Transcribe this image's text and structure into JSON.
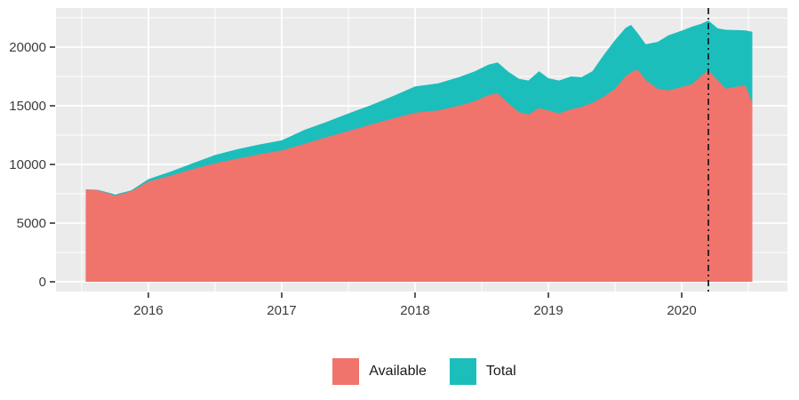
{
  "chart_data": {
    "type": "area",
    "title": "",
    "xlabel": "",
    "ylabel": "",
    "x": [
      2015.53,
      2015.62,
      2015.75,
      2015.87,
      2016.0,
      2016.17,
      2016.33,
      2016.5,
      2016.67,
      2016.83,
      2017.0,
      2017.17,
      2017.33,
      2017.5,
      2017.67,
      2017.83,
      2018.0,
      2018.17,
      2018.33,
      2018.45,
      2018.55,
      2018.62,
      2018.7,
      2018.78,
      2018.85,
      2018.93,
      2019.0,
      2019.08,
      2019.17,
      2019.25,
      2019.33,
      2019.42,
      2019.5,
      2019.58,
      2019.62,
      2019.67,
      2019.73,
      2019.82,
      2019.9,
      2020.0,
      2020.08,
      2020.15,
      2020.2,
      2020.27,
      2020.33,
      2020.42,
      2020.48,
      2020.53
    ],
    "series": [
      {
        "name": "Total",
        "color": "#1CBEBC",
        "values": [
          7880,
          7840,
          7450,
          7780,
          8750,
          9400,
          10100,
          10800,
          11300,
          11700,
          12050,
          12950,
          13600,
          14350,
          15050,
          15800,
          16650,
          16900,
          17450,
          17950,
          18500,
          18700,
          17900,
          17300,
          17150,
          17950,
          17350,
          17150,
          17500,
          17450,
          17950,
          19400,
          20600,
          21650,
          21890,
          21200,
          20250,
          20450,
          21000,
          21400,
          21750,
          22000,
          22270,
          21600,
          21480,
          21450,
          21420,
          21300
        ]
      },
      {
        "name": "Available",
        "color": "#F0746B",
        "values": [
          7850,
          7800,
          7350,
          7700,
          8550,
          9050,
          9600,
          10100,
          10500,
          10850,
          11200,
          11750,
          12300,
          12850,
          13400,
          13900,
          14400,
          14600,
          15000,
          15400,
          15900,
          16060,
          15200,
          14450,
          14250,
          14800,
          14600,
          14350,
          14700,
          14900,
          15250,
          15800,
          16450,
          17500,
          17850,
          18100,
          17200,
          16450,
          16300,
          16600,
          16850,
          17600,
          18000,
          17200,
          16450,
          16650,
          16700,
          15200
        ]
      }
    ],
    "x_axis": {
      "tick_labels": [
        "2016",
        "2017",
        "2018",
        "2019",
        "2020"
      ],
      "tick_values": [
        2016,
        2017,
        2018,
        2019,
        2020
      ],
      "minor_tick_values": [
        2015.5,
        2016.5,
        2017.5,
        2018.5,
        2019.5,
        2020.5
      ],
      "range": [
        2015.307,
        2020.793
      ]
    },
    "y_axis": {
      "tick_labels": [
        "0",
        "5000",
        "10000",
        "15000",
        "20000"
      ],
      "tick_values": [
        0,
        5000,
        10000,
        15000,
        20000
      ],
      "minor_tick_values": [
        2500,
        7500,
        12500,
        17500,
        22500
      ],
      "range": [
        -833,
        23333
      ]
    },
    "vline": {
      "x": 2020.2,
      "style": "dash-dot",
      "color": "#15151E"
    },
    "panel_background": "#EBEBEB",
    "grid_color": "#FFFFFF",
    "axis_text_color": "#3C3C3C",
    "tick_mark_color": "#333333",
    "legend_position": "bottom"
  },
  "legend": {
    "items": [
      {
        "label": "Available",
        "color": "#F0746B"
      },
      {
        "label": "Total",
        "color": "#1CBEBC"
      }
    ]
  }
}
